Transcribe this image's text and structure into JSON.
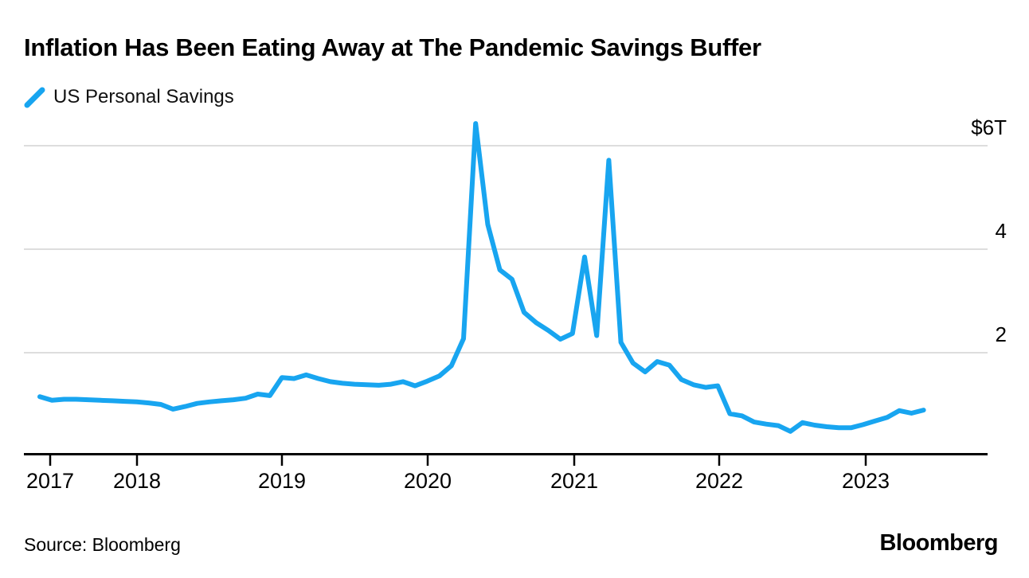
{
  "header": {
    "title": "Inflation Has Been Eating Away at The Pandemic Savings Buffer"
  },
  "legend": {
    "series_label": "US Personal Savings",
    "icon": "line-stroke-icon"
  },
  "footer": {
    "source_label": "Source: Bloomberg",
    "brand_logo": "Bloomberg"
  },
  "colors": {
    "line": "#18a5f0",
    "grid": "#dddddd",
    "axis": "#000000",
    "text": "#000000",
    "background": "#ffffff"
  },
  "chart_data": {
    "type": "line",
    "title": "Inflation Has Been Eating Away at The Pandemic Savings Buffer",
    "source": "Source: Bloomberg",
    "grid": "horizontal",
    "legend_position": "top-left",
    "y_axis": {
      "side": "right",
      "unit": "$T",
      "range": [
        0,
        6.6
      ],
      "ticks": [
        {
          "label": "$6T",
          "value": 6
        },
        {
          "label": "4",
          "value": 4
        },
        {
          "label": "2",
          "value": 2
        }
      ]
    },
    "x_axis": {
      "tick_labels": [
        "2017",
        "2018",
        "2019",
        "2020",
        "2021",
        "2022",
        "2023"
      ]
    },
    "series": [
      {
        "name": "US Personal Savings",
        "color": "#18a5f0",
        "frequency": "monthly",
        "start": "2017-05",
        "end": "2023-06",
        "unit": "trillions of US dollars",
        "values": [
          1.15,
          1.08,
          1.1,
          1.1,
          1.09,
          1.08,
          1.07,
          1.06,
          1.05,
          1.03,
          1.0,
          0.91,
          0.96,
          1.02,
          1.05,
          1.07,
          1.09,
          1.12,
          1.2,
          1.17,
          1.52,
          1.5,
          1.57,
          1.5,
          1.44,
          1.41,
          1.39,
          1.38,
          1.37,
          1.39,
          1.44,
          1.36,
          1.45,
          1.55,
          1.75,
          2.27,
          6.43,
          4.48,
          3.6,
          3.42,
          2.78,
          2.58,
          2.43,
          2.26,
          2.37,
          3.85,
          2.33,
          5.72,
          2.2,
          1.8,
          1.63,
          1.83,
          1.76,
          1.48,
          1.38,
          1.33,
          1.36,
          0.82,
          0.78,
          0.66,
          0.62,
          0.59,
          0.48,
          0.65,
          0.6,
          0.57,
          0.55,
          0.55,
          0.61,
          0.68,
          0.75,
          0.88,
          0.83,
          0.89
        ]
      }
    ]
  }
}
